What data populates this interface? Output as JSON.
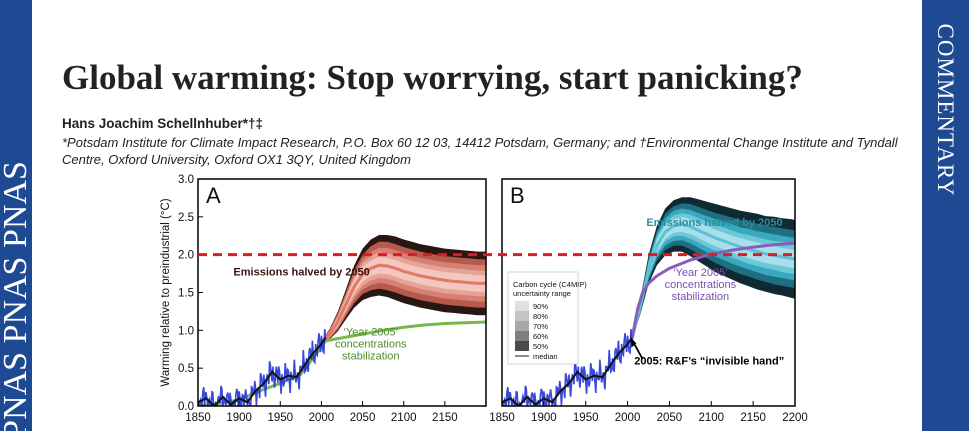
{
  "header": {
    "journal_band_text": "PNAS PNAS PNAS",
    "section_label": "COMMENTARY"
  },
  "article": {
    "title": "Global warming: Stop worrying, start panicking?",
    "author": "Hans Joachim Schellnhuber*†‡",
    "affiliation": "*Potsdam Institute for Climate Impact Research, P.O. Box 60 12 03, 14412 Potsdam, Germany; and †Environmental Change Institute and Tyndall Centre, Oxford University, Oxford OX1 3QY, United Kingdom"
  },
  "colors": {
    "band": "#1d4a92",
    "threshold_line": "#e11b1b",
    "panelA_fan": [
      "#f2c7bf",
      "#e7a296",
      "#d58072",
      "#b65a4d",
      "#2a1714"
    ],
    "panelA_median": "#e47766",
    "panelB_fan": [
      "#a7e0ea",
      "#6cc7d7",
      "#3aa8bd",
      "#1e6f82",
      "#0f2a33"
    ],
    "panelB_median": "#5fc0d2",
    "stabilization_A": "#79b84b",
    "stabilization_B": "#8a5dbb",
    "observed": "#2235d6"
  },
  "chart_data": {
    "type": "line",
    "ylabel": "Warming relative to preindustrial (°C)",
    "yticks": [
      "0.0",
      "0.5",
      "1.0",
      "1.5",
      "2.0",
      "2.5",
      "3.0"
    ],
    "ylim": [
      0,
      3.0
    ],
    "threshold": 2.0,
    "panels": [
      {
        "label": "A",
        "xlim": [
          1850,
          2200
        ],
        "xticks": [
          "1850",
          "1900",
          "1950",
          "2000",
          "2050",
          "2100",
          "2150"
        ],
        "annotations": [
          {
            "text": "Emissions halved by 2050",
            "color": "#3a1510"
          },
          {
            "text": "‘Year 2005’ concentrations stabilization",
            "color": "#4f8a2e"
          }
        ],
        "series": [
          {
            "name": "Emissions halved by 2050",
            "x": [
              2000,
              2010,
              2020,
              2030,
              2040,
              2050,
              2060,
              2070,
              2080,
              2090,
              2100,
              2110,
              2120,
              2130,
              2140,
              2150,
              2160,
              2170,
              2180,
              2190,
              2200
            ],
            "median": [
              0.85,
              0.95,
              1.12,
              1.35,
              1.58,
              1.74,
              1.82,
              1.86,
              1.85,
              1.82,
              1.78,
              1.75,
              1.72,
              1.7,
              1.68,
              1.66,
              1.65,
              1.64,
              1.63,
              1.62,
              1.62
            ],
            "band_halfwidths_50_60_70_80_90": [
              [
                0.0,
                0.0,
                0.0,
                0.0,
                0.0
              ],
              [
                0.03,
                0.04,
                0.05,
                0.06,
                0.07
              ],
              [
                0.05,
                0.07,
                0.09,
                0.11,
                0.13
              ],
              [
                0.07,
                0.1,
                0.13,
                0.16,
                0.2
              ],
              [
                0.09,
                0.13,
                0.17,
                0.22,
                0.28
              ],
              [
                0.1,
                0.15,
                0.2,
                0.26,
                0.34
              ],
              [
                0.1,
                0.16,
                0.22,
                0.29,
                0.38
              ],
              [
                0.11,
                0.17,
                0.23,
                0.31,
                0.4
              ],
              [
                0.11,
                0.17,
                0.24,
                0.32,
                0.41
              ],
              [
                0.11,
                0.17,
                0.24,
                0.32,
                0.42
              ],
              [
                0.11,
                0.17,
                0.24,
                0.32,
                0.42
              ],
              [
                0.11,
                0.17,
                0.24,
                0.32,
                0.42
              ],
              [
                0.11,
                0.17,
                0.24,
                0.32,
                0.42
              ],
              [
                0.11,
                0.17,
                0.24,
                0.32,
                0.42
              ],
              [
                0.11,
                0.17,
                0.24,
                0.32,
                0.42
              ],
              [
                0.11,
                0.17,
                0.24,
                0.32,
                0.42
              ],
              [
                0.11,
                0.17,
                0.24,
                0.32,
                0.42
              ],
              [
                0.11,
                0.17,
                0.24,
                0.32,
                0.42
              ],
              [
                0.11,
                0.17,
                0.24,
                0.32,
                0.42
              ],
              [
                0.11,
                0.17,
                0.24,
                0.32,
                0.42
              ],
              [
                0.11,
                0.17,
                0.24,
                0.32,
                0.42
              ]
            ]
          },
          {
            "name": "‘Year 2005’ concentrations stabilization",
            "x": [
              1850,
              1875,
              1900,
              1925,
              1950,
              1975,
              2000,
              2005,
              2025,
              2050,
              2075,
              2100,
              2125,
              2150,
              2175,
              2200
            ],
            "y": [
              0.0,
              0.03,
              0.08,
              0.2,
              0.3,
              0.42,
              0.78,
              0.86,
              0.9,
              0.95,
              1.0,
              1.04,
              1.07,
              1.09,
              1.1,
              1.11
            ]
          },
          {
            "name": "observed",
            "x": [
              1850,
              1860,
              1870,
              1880,
              1890,
              1900,
              1910,
              1920,
              1930,
              1940,
              1950,
              1960,
              1970,
              1980,
              1990,
              2000,
              2005
            ],
            "y": [
              0.05,
              0.1,
              0.0,
              0.12,
              0.02,
              0.1,
              0.05,
              0.2,
              0.3,
              0.45,
              0.35,
              0.4,
              0.38,
              0.55,
              0.7,
              0.82,
              0.9
            ]
          }
        ]
      },
      {
        "label": "B",
        "xlim": [
          1850,
          2200
        ],
        "xticks": [
          "1850",
          "1900",
          "1950",
          "2000",
          "2050",
          "2100",
          "2150",
          "2200"
        ],
        "annotations": [
          {
            "text": "Emissions halved by 2050",
            "color": "#2c8ea0"
          },
          {
            "text": "‘Year 2005’ concentrations stabilization",
            "color": "#7b4fae"
          },
          {
            "text": "2005: R&F’s “invisible hand”",
            "color": "#000000"
          }
        ],
        "legend": {
          "title": "Carbon cycle (C4MIP) uncertainty range",
          "entries": [
            "90%",
            "80%",
            "70%",
            "60%",
            "50%",
            "median"
          ]
        },
        "series": [
          {
            "name": "Emissions halved by 2050",
            "x": [
              2005,
              2015,
              2025,
              2035,
              2045,
              2055,
              2065,
              2075,
              2085,
              2095,
              2105,
              2115,
              2125,
              2135,
              2145,
              2155,
              2165,
              2175,
              2185,
              2195,
              2200
            ],
            "median": [
              0.88,
              1.3,
              1.8,
              2.12,
              2.3,
              2.38,
              2.4,
              2.37,
              2.32,
              2.27,
              2.22,
              2.18,
              2.14,
              2.1,
              2.07,
              2.04,
              2.01,
              1.99,
              1.97,
              1.95,
              1.94
            ],
            "band_halfwidths_50_60_70_80_90": [
              [
                0.0,
                0.0,
                0.0,
                0.0,
                0.0
              ],
              [
                0.03,
                0.05,
                0.06,
                0.08,
                0.1
              ],
              [
                0.06,
                0.09,
                0.12,
                0.15,
                0.19
              ],
              [
                0.08,
                0.12,
                0.16,
                0.2,
                0.26
              ],
              [
                0.09,
                0.13,
                0.18,
                0.24,
                0.31
              ],
              [
                0.09,
                0.14,
                0.2,
                0.26,
                0.34
              ],
              [
                0.1,
                0.15,
                0.21,
                0.28,
                0.36
              ],
              [
                0.1,
                0.16,
                0.22,
                0.3,
                0.39
              ],
              [
                0.1,
                0.16,
                0.23,
                0.31,
                0.41
              ],
              [
                0.11,
                0.17,
                0.24,
                0.32,
                0.43
              ],
              [
                0.11,
                0.17,
                0.25,
                0.33,
                0.45
              ],
              [
                0.11,
                0.18,
                0.25,
                0.34,
                0.46
              ],
              [
                0.11,
                0.18,
                0.26,
                0.35,
                0.47
              ],
              [
                0.12,
                0.18,
                0.26,
                0.36,
                0.48
              ],
              [
                0.12,
                0.19,
                0.27,
                0.36,
                0.49
              ],
              [
                0.12,
                0.19,
                0.27,
                0.37,
                0.5
              ],
              [
                0.12,
                0.19,
                0.28,
                0.37,
                0.5
              ],
              [
                0.12,
                0.19,
                0.28,
                0.38,
                0.51
              ],
              [
                0.12,
                0.2,
                0.28,
                0.38,
                0.51
              ],
              [
                0.12,
                0.2,
                0.28,
                0.38,
                0.52
              ],
              [
                0.12,
                0.2,
                0.28,
                0.38,
                0.52
              ]
            ]
          },
          {
            "name": "‘Year 2005’ concentrations stabilization",
            "x": [
              2005,
              2008,
              2012,
              2018,
              2025,
              2035,
              2050,
              2075,
              2100,
              2125,
              2150,
              2175,
              2200
            ],
            "y": [
              0.88,
              1.05,
              1.28,
              1.5,
              1.62,
              1.72,
              1.82,
              1.93,
              2.01,
              2.06,
              2.1,
              2.13,
              2.15
            ]
          },
          {
            "name": "observed",
            "x": [
              1850,
              1860,
              1870,
              1880,
              1890,
              1900,
              1910,
              1920,
              1930,
              1940,
              1950,
              1960,
              1970,
              1980,
              1990,
              2000,
              2005
            ],
            "y": [
              0.05,
              0.1,
              0.0,
              0.12,
              0.02,
              0.1,
              0.05,
              0.2,
              0.3,
              0.45,
              0.35,
              0.4,
              0.38,
              0.55,
              0.7,
              0.82,
              0.9
            ]
          }
        ]
      }
    ]
  }
}
